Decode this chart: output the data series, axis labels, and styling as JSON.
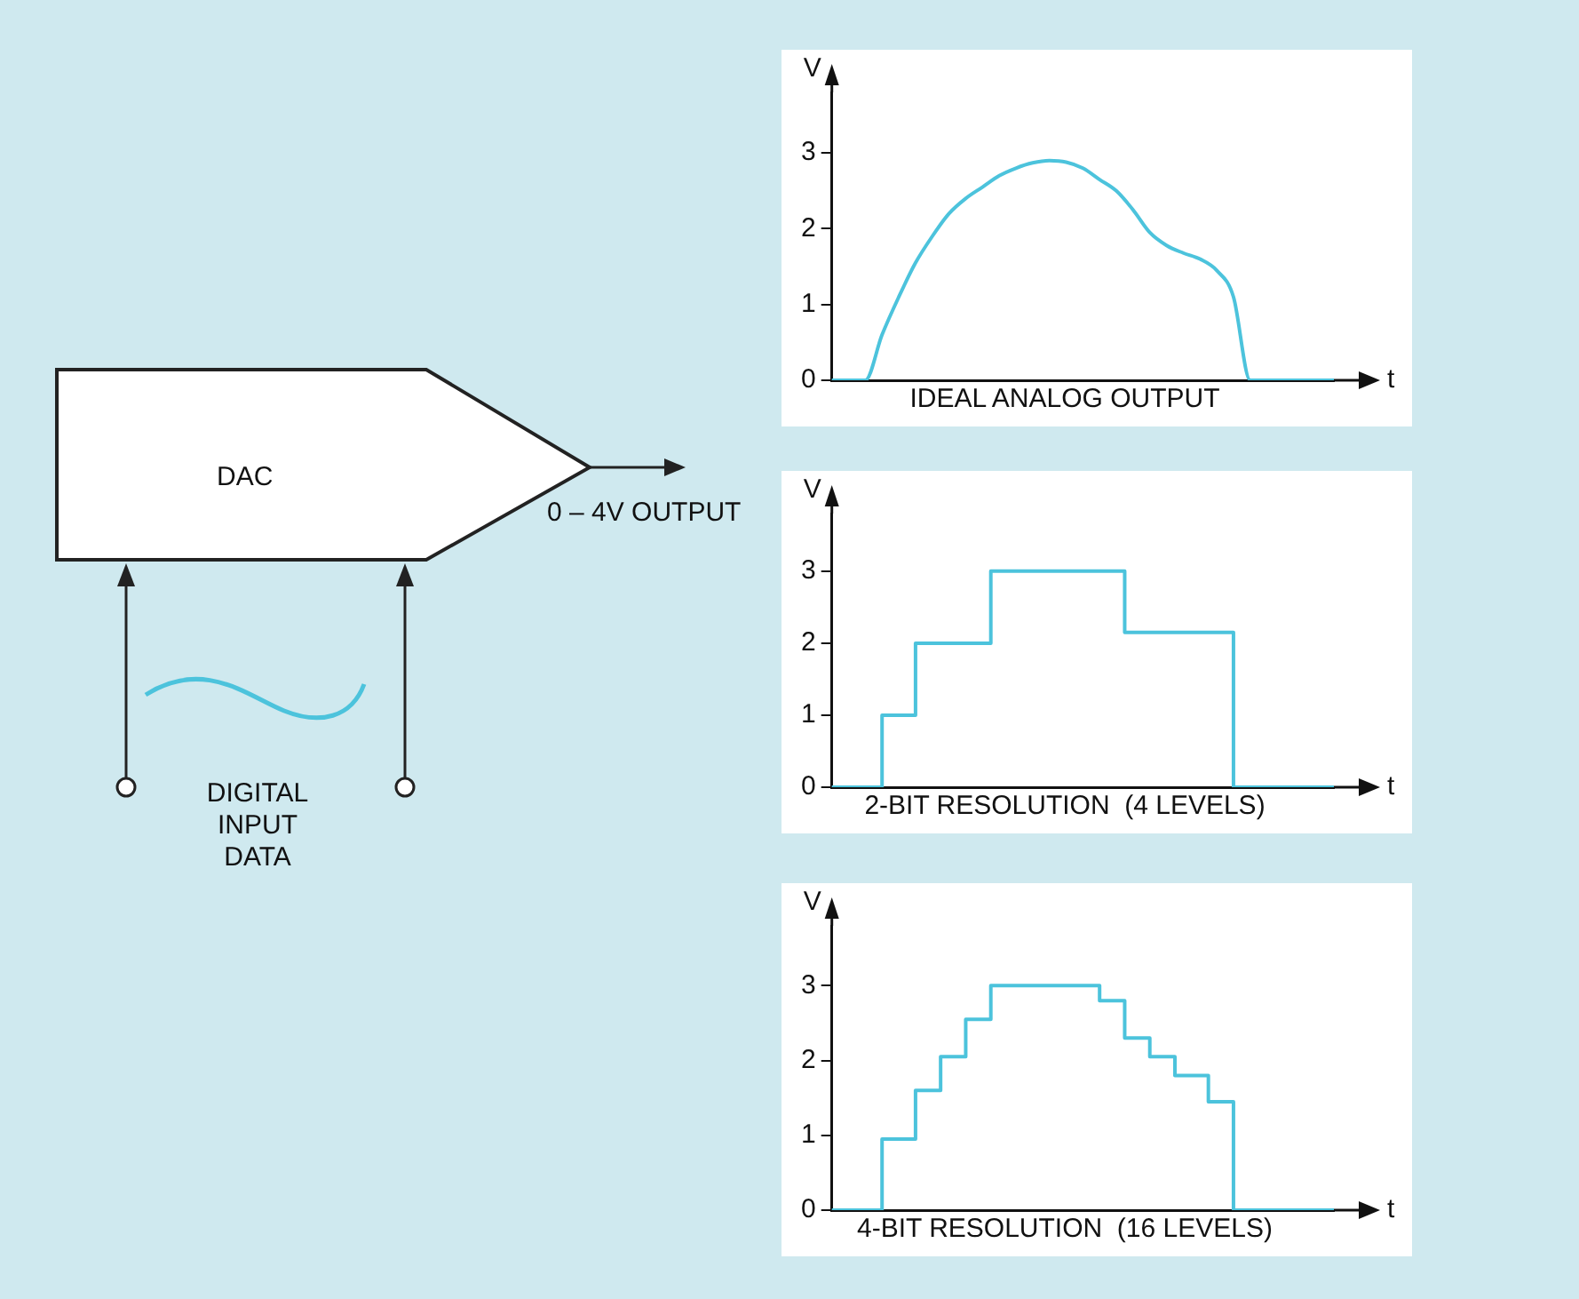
{
  "chart_data": [
    {
      "type": "other",
      "annotations": [
        "DAC",
        "0 – 4V OUTPUT",
        "DIGITAL INPUT DATA"
      ]
    },
    {
      "type": "line",
      "title": "IDEAL ANALOG OUTPUT",
      "xlabel": "t",
      "ylabel": "V",
      "tick_labels": "y",
      "marker": "none",
      "ylim": [
        0,
        3.8
      ],
      "yticks": [
        0,
        1,
        2,
        3
      ],
      "categories": [
        null,
        null,
        null,
        null,
        null,
        null,
        null,
        null,
        null,
        null,
        null,
        null,
        null,
        null,
        null,
        null,
        null,
        null,
        null,
        null,
        null,
        null,
        null,
        null,
        null,
        null,
        null,
        null,
        null,
        null,
        null
      ],
      "series": [
        {
          "color": "#4cc3dc",
          "values": [
            0,
            0,
            0,
            0.6,
            1.1,
            1.55,
            1.9,
            2.2,
            2.4,
            2.55,
            2.7,
            2.8,
            2.87,
            2.9,
            2.88,
            2.8,
            2.65,
            2.5,
            2.25,
            1.95,
            1.78,
            1.68,
            1.6,
            1.45,
            1.1,
            0,
            0,
            0,
            0,
            0,
            0
          ]
        }
      ]
    },
    {
      "type": "step",
      "title": "2-BIT RESOLUTION  (4 LEVELS)",
      "xlabel": "t",
      "ylabel": "V",
      "tick_labels": "y",
      "marker": "none",
      "ylim": [
        0,
        3.8
      ],
      "yticks": [
        0,
        1,
        2,
        3
      ],
      "categories": [
        null,
        null,
        null,
        null,
        null,
        null,
        null,
        null,
        null,
        null,
        null,
        null,
        null,
        null,
        null,
        null,
        null,
        null,
        null,
        null,
        null,
        null,
        null,
        null,
        null,
        null,
        null,
        null,
        null,
        null,
        null,
        null,
        null,
        null,
        null,
        null,
        null,
        null,
        null,
        null,
        null,
        null,
        null,
        null,
        null,
        null,
        null,
        null,
        null,
        null,
        null,
        null,
        null,
        null,
        null,
        null,
        null,
        null,
        null,
        null,
        null
      ],
      "series": [
        {
          "color": "#4cc3dc",
          "values": [
            0,
            0,
            0,
            0,
            0,
            0,
            1,
            1,
            1,
            1,
            2,
            2,
            2,
            2,
            2,
            2,
            2,
            2,
            2,
            3,
            3,
            3,
            3,
            3,
            3,
            3,
            3,
            3,
            3,
            3,
            3,
            3,
            3,
            3,
            3,
            2.15,
            2.15,
            2.15,
            2.15,
            2.15,
            2.15,
            2.15,
            2.15,
            2.15,
            2.15,
            2.15,
            2.15,
            2.15,
            0,
            0,
            0,
            0,
            0,
            0,
            0,
            0,
            0,
            0,
            0,
            0,
            0
          ]
        }
      ]
    },
    {
      "type": "step",
      "title": "4-BIT RESOLUTION  (16 LEVELS)",
      "xlabel": "t",
      "ylabel": "V",
      "tick_labels": "y",
      "marker": "none",
      "ylim": [
        0,
        3.8
      ],
      "yticks": [
        0,
        1,
        2,
        3
      ],
      "categories": [
        null,
        null,
        null,
        null,
        null,
        null,
        null,
        null,
        null,
        null,
        null,
        null,
        null,
        null,
        null,
        null,
        null,
        null,
        null,
        null,
        null,
        null,
        null,
        null,
        null,
        null,
        null,
        null,
        null,
        null,
        null,
        null,
        null,
        null,
        null,
        null,
        null,
        null,
        null,
        null,
        null,
        null,
        null,
        null,
        null,
        null,
        null,
        null,
        null,
        null,
        null,
        null,
        null,
        null,
        null,
        null,
        null,
        null,
        null,
        null,
        null
      ],
      "series": [
        {
          "color": "#4cc3dc",
          "values": [
            0,
            0,
            0,
            0,
            0,
            0,
            0.95,
            0.95,
            0.95,
            0.95,
            1.6,
            1.6,
            1.6,
            2.05,
            2.05,
            2.05,
            2.55,
            2.55,
            2.55,
            3,
            3,
            3,
            3,
            3,
            3,
            3,
            3,
            3,
            3,
            3,
            3,
            3,
            2.8,
            2.8,
            2.8,
            2.3,
            2.3,
            2.3,
            2.05,
            2.05,
            2.05,
            1.8,
            1.8,
            1.8,
            1.8,
            1.45,
            1.45,
            1.45,
            0,
            0,
            0,
            0,
            0,
            0,
            0,
            0,
            0,
            0,
            0,
            0,
            0
          ]
        }
      ]
    }
  ]
}
